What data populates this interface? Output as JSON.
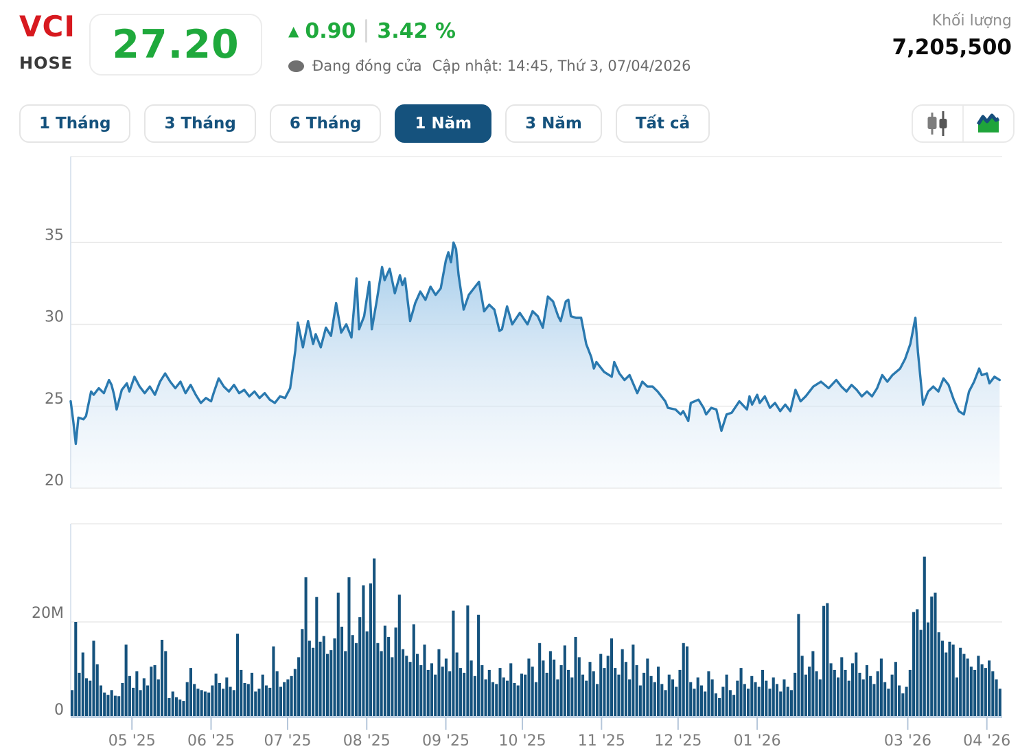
{
  "header": {
    "symbol": "VCI",
    "exchange": "HOSE",
    "price": "27.20",
    "arrow_up_glyph": "▲",
    "change": "0.90",
    "change_percent": "3.42 %",
    "market_status": "Đang đóng cửa",
    "updated": "Cập nhật: 14:45, Thứ 3, 07/04/2026",
    "volume_label": "Khối lượng",
    "volume_value": "7,205,500",
    "colors": {
      "up_green": "#1fa93c",
      "symbol_red": "#d7191f"
    }
  },
  "toolbar": {
    "ranges": [
      {
        "label": "1 Tháng",
        "active": false
      },
      {
        "label": "3 Tháng",
        "active": false
      },
      {
        "label": "6 Tháng",
        "active": false
      },
      {
        "label": "1 Năm",
        "active": true
      },
      {
        "label": "3 Năm",
        "active": false
      },
      {
        "label": "Tất cả",
        "active": false
      }
    ],
    "chart_types": [
      {
        "icon": "candlestick-chart-icon",
        "active": false
      },
      {
        "icon": "area-chart-icon",
        "active": true
      }
    ]
  },
  "chart_data": {
    "type": "area",
    "title": "VCI 1-year price with volume",
    "price_panel": {
      "type": "area",
      "yticks": [
        35,
        30,
        25,
        20
      ],
      "ylim": [
        20,
        40
      ],
      "points": [
        [
          0,
          25.3
        ],
        [
          1,
          24.1
        ],
        [
          2,
          22.7
        ],
        [
          3,
          24.3
        ],
        [
          5,
          24.2
        ],
        [
          6,
          24.4
        ],
        [
          8,
          25.9
        ],
        [
          9,
          25.7
        ],
        [
          11,
          26.1
        ],
        [
          13,
          25.8
        ],
        [
          15,
          26.6
        ],
        [
          16,
          26.3
        ],
        [
          17,
          25.7
        ],
        [
          18,
          24.8
        ],
        [
          20,
          26.0
        ],
        [
          22,
          26.4
        ],
        [
          23,
          25.9
        ],
        [
          25,
          26.8
        ],
        [
          27,
          26.2
        ],
        [
          29,
          25.8
        ],
        [
          31,
          26.2
        ],
        [
          33,
          25.7
        ],
        [
          35,
          26.5
        ],
        [
          37,
          27.0
        ],
        [
          39,
          26.5
        ],
        [
          41,
          26.1
        ],
        [
          43,
          26.5
        ],
        [
          45,
          25.8
        ],
        [
          47,
          26.3
        ],
        [
          49,
          25.7
        ],
        [
          51,
          25.2
        ],
        [
          53,
          25.5
        ],
        [
          55,
          25.3
        ],
        [
          56,
          25.8
        ],
        [
          58,
          26.7
        ],
        [
          60,
          26.2
        ],
        [
          62,
          25.9
        ],
        [
          64,
          26.3
        ],
        [
          66,
          25.8
        ],
        [
          68,
          26.0
        ],
        [
          70,
          25.6
        ],
        [
          72,
          25.9
        ],
        [
          74,
          25.5
        ],
        [
          76,
          25.8
        ],
        [
          78,
          25.4
        ],
        [
          80,
          25.2
        ],
        [
          82,
          25.6
        ],
        [
          84,
          25.5
        ],
        [
          86,
          26.1
        ],
        [
          88,
          28.4
        ],
        [
          89,
          30.1
        ],
        [
          91,
          28.6
        ],
        [
          93,
          30.2
        ],
        [
          95,
          28.8
        ],
        [
          96,
          29.4
        ],
        [
          98,
          28.6
        ],
        [
          100,
          29.8
        ],
        [
          102,
          29.3
        ],
        [
          104,
          31.3
        ],
        [
          106,
          29.5
        ],
        [
          108,
          30.0
        ],
        [
          110,
          29.2
        ],
        [
          112,
          32.8
        ],
        [
          113,
          29.7
        ],
        [
          115,
          30.5
        ],
        [
          117,
          32.6
        ],
        [
          118,
          29.7
        ],
        [
          120,
          31.5
        ],
        [
          122,
          33.5
        ],
        [
          123,
          32.7
        ],
        [
          125,
          33.4
        ],
        [
          127,
          31.9
        ],
        [
          129,
          33.0
        ],
        [
          130,
          32.4
        ],
        [
          131,
          32.8
        ],
        [
          133,
          30.2
        ],
        [
          135,
          31.3
        ],
        [
          137,
          32.0
        ],
        [
          139,
          31.5
        ],
        [
          141,
          32.3
        ],
        [
          143,
          31.8
        ],
        [
          145,
          32.2
        ],
        [
          147,
          33.9
        ],
        [
          148,
          34.4
        ],
        [
          149,
          33.8
        ],
        [
          150,
          35.0
        ],
        [
          151,
          34.6
        ],
        [
          152,
          33.0
        ],
        [
          154,
          30.9
        ],
        [
          156,
          31.8
        ],
        [
          158,
          32.2
        ],
        [
          160,
          32.6
        ],
        [
          162,
          30.8
        ],
        [
          164,
          31.2
        ],
        [
          166,
          30.9
        ],
        [
          168,
          29.6
        ],
        [
          169,
          29.7
        ],
        [
          171,
          31.1
        ],
        [
          173,
          30.0
        ],
        [
          176,
          30.7
        ],
        [
          179,
          30.0
        ],
        [
          181,
          30.8
        ],
        [
          183,
          30.5
        ],
        [
          185,
          29.8
        ],
        [
          187,
          31.7
        ],
        [
          189,
          31.4
        ],
        [
          191,
          30.5
        ],
        [
          192,
          30.2
        ],
        [
          194,
          31.4
        ],
        [
          195,
          31.5
        ],
        [
          196,
          30.5
        ],
        [
          198,
          30.4
        ],
        [
          200,
          30.4
        ],
        [
          202,
          28.8
        ],
        [
          204,
          28.0
        ],
        [
          205,
          27.3
        ],
        [
          206,
          27.7
        ],
        [
          209,
          27.1
        ],
        [
          212,
          26.8
        ],
        [
          213,
          27.7
        ],
        [
          215,
          27.0
        ],
        [
          217,
          26.6
        ],
        [
          219,
          26.9
        ],
        [
          222,
          25.8
        ],
        [
          224,
          26.5
        ],
        [
          226,
          26.2
        ],
        [
          228,
          26.2
        ],
        [
          230,
          25.9
        ],
        [
          233,
          25.3
        ],
        [
          234,
          24.9
        ],
        [
          237,
          24.8
        ],
        [
          239,
          24.5
        ],
        [
          240,
          24.7
        ],
        [
          242,
          24.1
        ],
        [
          243,
          25.2
        ],
        [
          246,
          25.4
        ],
        [
          248,
          24.9
        ],
        [
          249,
          24.5
        ],
        [
          251,
          24.9
        ],
        [
          253,
          24.8
        ],
        [
          255,
          23.5
        ],
        [
          257,
          24.5
        ],
        [
          259,
          24.6
        ],
        [
          262,
          25.3
        ],
        [
          265,
          24.8
        ],
        [
          266,
          25.6
        ],
        [
          267,
          25.1
        ],
        [
          269,
          25.7
        ],
        [
          270,
          25.2
        ],
        [
          272,
          25.6
        ],
        [
          274,
          24.9
        ],
        [
          276,
          25.2
        ],
        [
          278,
          24.7
        ],
        [
          280,
          25.1
        ],
        [
          282,
          24.7
        ],
        [
          284,
          26.0
        ],
        [
          286,
          25.3
        ],
        [
          288,
          25.6
        ],
        [
          291,
          26.2
        ],
        [
          294,
          26.5
        ],
        [
          297,
          26.1
        ],
        [
          300,
          26.6
        ],
        [
          302,
          26.2
        ],
        [
          304,
          25.9
        ],
        [
          306,
          26.3
        ],
        [
          308,
          26.0
        ],
        [
          310,
          25.6
        ],
        [
          312,
          25.9
        ],
        [
          314,
          25.6
        ],
        [
          316,
          26.1
        ],
        [
          318,
          26.9
        ],
        [
          320,
          26.5
        ],
        [
          322,
          26.9
        ],
        [
          325,
          27.3
        ],
        [
          327,
          27.9
        ],
        [
          329,
          28.8
        ],
        [
          331,
          30.4
        ],
        [
          332,
          28.3
        ],
        [
          334,
          25.1
        ],
        [
          336,
          25.9
        ],
        [
          338,
          26.2
        ],
        [
          340,
          25.9
        ],
        [
          342,
          26.7
        ],
        [
          344,
          26.3
        ],
        [
          346,
          25.4
        ],
        [
          348,
          24.7
        ],
        [
          350,
          24.5
        ],
        [
          352,
          25.9
        ],
        [
          354,
          26.5
        ],
        [
          356,
          27.3
        ],
        [
          357,
          26.9
        ],
        [
          359,
          27.0
        ],
        [
          360,
          26.4
        ],
        [
          362,
          26.8
        ],
        [
          364,
          26.6
        ]
      ]
    },
    "volume_panel": {
      "type": "bar",
      "ytick_labels": [
        "20M",
        "0"
      ],
      "ytick_values_millions": [
        20,
        0
      ],
      "values_millions": [
        5.5,
        20,
        9.2,
        13.5,
        8,
        7.5,
        16,
        11,
        6.5,
        5,
        4.5,
        5.5,
        4.3,
        4.2,
        7,
        15.2,
        8.5,
        6,
        9.5,
        5.5,
        8,
        6.5,
        10.5,
        10.8,
        7.8,
        16.2,
        13.8,
        3.8,
        5.2,
        4,
        3.5,
        3.2,
        7.2,
        10.2,
        6.8,
        5.8,
        5.5,
        5.2,
        5,
        6.5,
        9,
        7,
        5.8,
        8.2,
        6.2,
        5.5,
        17.5,
        9.8,
        7,
        6.8,
        9.2,
        5.2,
        5.8,
        8.8,
        6.5,
        6,
        14.8,
        9.5,
        6.2,
        7.2,
        7.8,
        8.5,
        10,
        12.5,
        18.5,
        29.5,
        16,
        14.5,
        25.3,
        15.8,
        17,
        13.2,
        14,
        16.5,
        26.2,
        19,
        13.8,
        29.5,
        17.2,
        15.5,
        21,
        27.8,
        18,
        28.2,
        33.5,
        15.5,
        13.8,
        19.2,
        16.8,
        12.5,
        18.8,
        25.8,
        14.2,
        12.8,
        11.5,
        19.5,
        13.2,
        10.8,
        15.2,
        9.8,
        11.2,
        8.8,
        14.2,
        10.5,
        12.2,
        9.5,
        22.4,
        13.5,
        10.2,
        9.2,
        23.5,
        11.8,
        8.5,
        21.5,
        10.8,
        7.8,
        9.8,
        7.2,
        6.8,
        10.2,
        8.2,
        7.5,
        11.2,
        7,
        6.5,
        9,
        8.8,
        12.2,
        10.5,
        7.2,
        15.5,
        11.8,
        9.2,
        13.8,
        12,
        7.8,
        10.8,
        15,
        9.8,
        8.2,
        16.8,
        12.5,
        8.8,
        7.5,
        11.5,
        9.5,
        6.8,
        13.2,
        10.2,
        12.8,
        16.5,
        10.2,
        8.8,
        14.2,
        11.5,
        7.8,
        15.2,
        10.8,
        6.5,
        9.2,
        12.2,
        8.5,
        7.2,
        10.5,
        6.8,
        5.5,
        8.8,
        7.8,
        6.2,
        9.8,
        15.5,
        14.8,
        7.2,
        5.8,
        8.2,
        6.5,
        5.2,
        9.5,
        7.8,
        4.8,
        3.8,
        6.2,
        8.8,
        5.5,
        4.5,
        7.5,
        10.2,
        6.8,
        5.8,
        8.5,
        7.2,
        6.2,
        9.8,
        7.5,
        5.8,
        8.2,
        6.8,
        5.2,
        7.8,
        6.2,
        5.5,
        9.2,
        21.7,
        12.8,
        8.8,
        10.5,
        13.8,
        9.5,
        7.8,
        23.4,
        24,
        11.2,
        9.8,
        8.2,
        12.5,
        9.8,
        7.5,
        11.2,
        13.5,
        9.2,
        7.8,
        10.8,
        8.5,
        6.8,
        9.5,
        12.2,
        7.2,
        5.8,
        8.8,
        11.5,
        6.5,
        4.8,
        6.2,
        9.8,
        22.1,
        22.7,
        18.3,
        33.9,
        19.9,
        25.4,
        26.2,
        17.8,
        16,
        13.5,
        15.8,
        15.2,
        8.2,
        14.5,
        13.2,
        12.2,
        10.5,
        9.8,
        12.8,
        11,
        10.2,
        11.8,
        9.5,
        7.8,
        5.8
      ]
    },
    "x_axis": {
      "domain_days": [
        0,
        365
      ],
      "tick_days": [
        24,
        55,
        85,
        116,
        147,
        177,
        208,
        238,
        269,
        328,
        359
      ],
      "tick_labels": [
        "05 '25",
        "06 '25",
        "07 '25",
        "08 '25",
        "09 '25",
        "10 '25",
        "11 '25",
        "12 '25",
        "01 '26",
        "03 '26",
        "04 '26"
      ]
    },
    "legend": null,
    "grid": "horizontal-only",
    "style": {
      "line": "#2a79af",
      "area_top": "#8fc1e6",
      "area_mid": "#c6ddf1",
      "area_bottom": "#eef5fb",
      "bar": "#15527d",
      "grid_line": "#e9e9e9",
      "axis_bottom_line": "#b5cbe0",
      "tick_mark": "#b5c6da",
      "axis_label": "#6f6f6f",
      "x_label": "#7d7d7d"
    }
  }
}
